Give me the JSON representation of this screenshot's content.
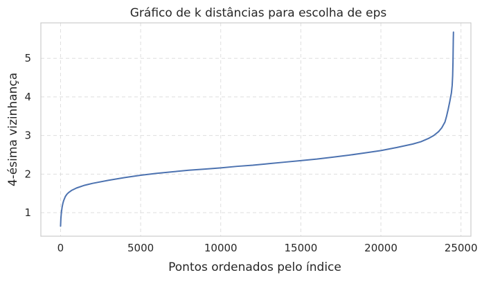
{
  "chart_data": {
    "type": "line",
    "title": "Gráfico de k distâncias para escolha de eps",
    "xlabel": "Pontos ordenados pelo índice",
    "ylabel": "4-ésima vizinhança",
    "xlim": [
      -1230,
      25620
    ],
    "ylim": [
      0.39,
      5.92
    ],
    "xticks": [
      0,
      5000,
      10000,
      15000,
      20000,
      25000
    ],
    "yticks": [
      1,
      2,
      3,
      4,
      5
    ],
    "xtick_labels": [
      "0",
      "5000",
      "10000",
      "15000",
      "20000",
      "25000"
    ],
    "ytick_labels": [
      "1",
      "2",
      "3",
      "4",
      "5"
    ],
    "grid": true,
    "grid_style": "dashed",
    "line_color": "#4c72b0",
    "series": [
      {
        "x": [
          0,
          20,
          50,
          100,
          150,
          200,
          300,
          400,
          500,
          700,
          1000,
          1500,
          2000,
          3000,
          4000,
          5000,
          6000,
          7000,
          8000,
          9000,
          10000,
          11000,
          12000,
          13000,
          14000,
          15000,
          16000,
          17000,
          18000,
          19000,
          20000,
          21000,
          22000,
          22500,
          23000,
          23300,
          23600,
          23800,
          24000,
          24100,
          24200,
          24300,
          24400,
          24450,
          24480,
          24500,
          24510,
          24520,
          24530
        ],
        "y": [
          0.65,
          0.85,
          1.0,
          1.15,
          1.25,
          1.32,
          1.42,
          1.48,
          1.52,
          1.58,
          1.64,
          1.71,
          1.76,
          1.84,
          1.91,
          1.97,
          2.02,
          2.06,
          2.1,
          2.13,
          2.16,
          2.2,
          2.23,
          2.27,
          2.31,
          2.35,
          2.39,
          2.44,
          2.49,
          2.55,
          2.61,
          2.69,
          2.78,
          2.84,
          2.93,
          3.0,
          3.1,
          3.2,
          3.35,
          3.5,
          3.68,
          3.88,
          4.1,
          4.3,
          4.55,
          4.9,
          5.2,
          5.5,
          5.68
        ]
      }
    ]
  }
}
